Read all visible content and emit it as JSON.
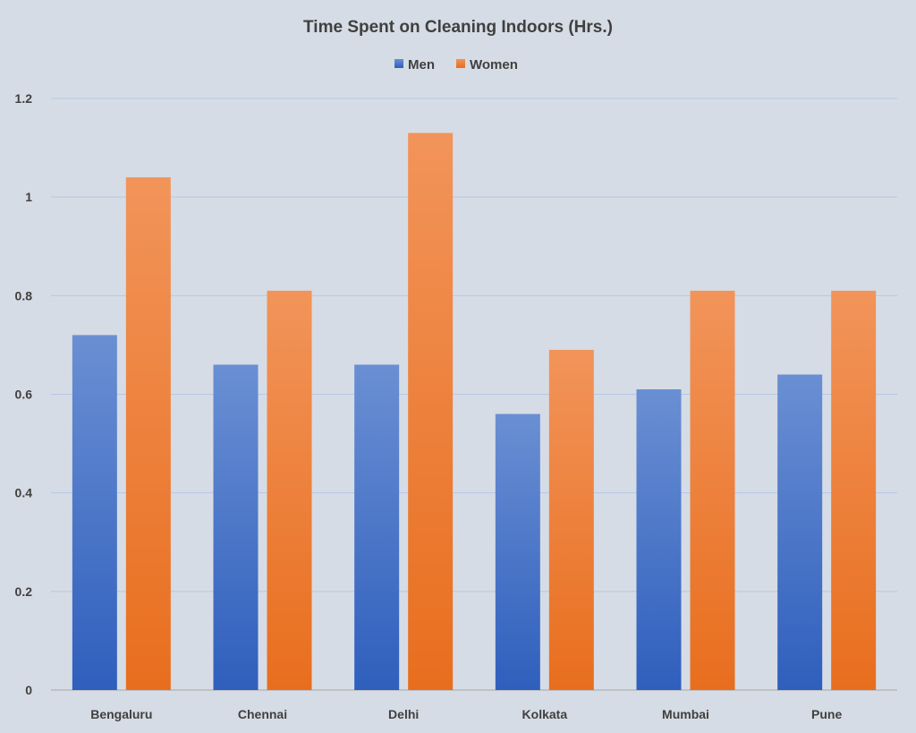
{
  "chart_data": {
    "type": "bar",
    "title": "Time Spent on Cleaning Indoors (Hrs.)",
    "xlabel": "",
    "ylabel": "",
    "categories": [
      "Bengaluru",
      "Chennai",
      "Delhi",
      "Kolkata",
      "Mumbai",
      "Pune"
    ],
    "series": [
      {
        "name": "Men",
        "values": [
          0.72,
          0.66,
          0.66,
          0.56,
          0.61,
          0.64
        ],
        "color": "#4472c4"
      },
      {
        "name": "Women",
        "values": [
          1.04,
          0.81,
          1.13,
          0.69,
          0.81,
          0.81
        ],
        "color": "#ed7d31"
      }
    ],
    "ylim": [
      0,
      1.2
    ],
    "yticks": [
      "0",
      "0.2",
      "0.4",
      "0.6",
      "0.8",
      "1",
      "1.2"
    ],
    "grid": true,
    "legend": "top-center"
  }
}
